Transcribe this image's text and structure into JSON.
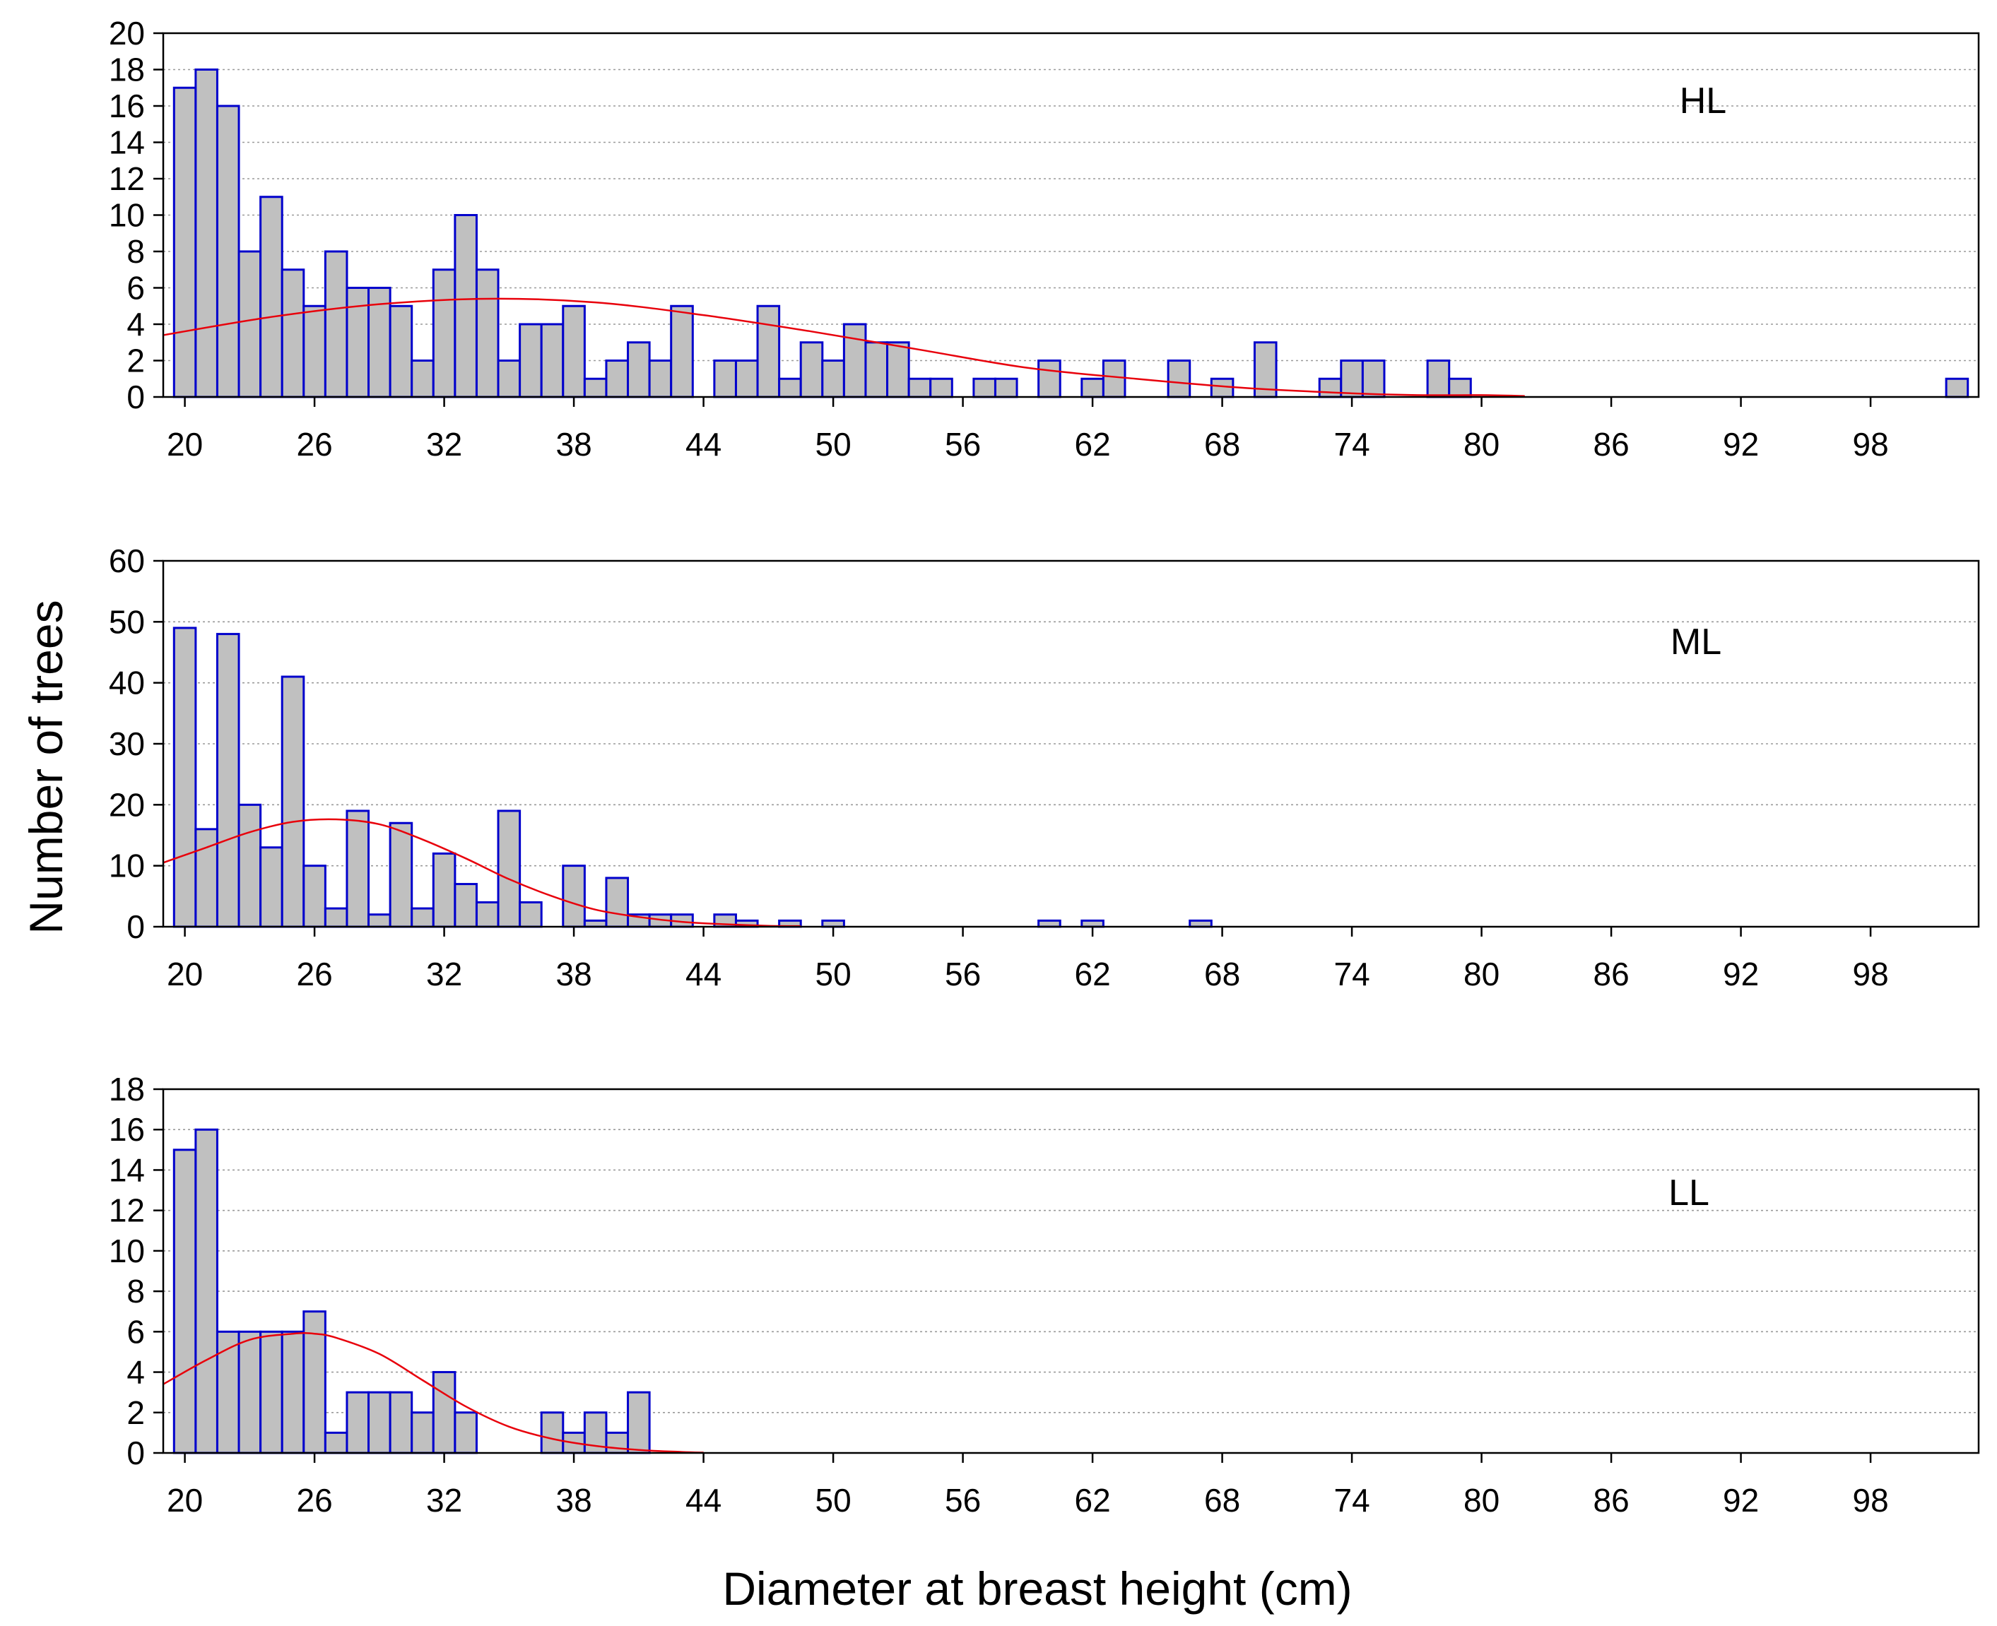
{
  "chart_data": [
    {
      "type": "bar",
      "panel_label": "HL",
      "xlim": [
        19,
        103
      ],
      "ylim": [
        0,
        20
      ],
      "x_ticks": [
        20,
        26,
        32,
        38,
        44,
        50,
        56,
        62,
        68,
        74,
        80,
        86,
        92,
        98
      ],
      "y_ticks": [
        0,
        2,
        4,
        6,
        8,
        10,
        12,
        14,
        16,
        18,
        20
      ],
      "grid": "horizontal dotted",
      "bin_width": 1,
      "x": [
        20,
        21,
        22,
        23,
        24,
        25,
        26,
        27,
        28,
        29,
        30,
        31,
        32,
        33,
        34,
        35,
        36,
        37,
        38,
        39,
        40,
        41,
        42,
        43,
        45,
        46,
        47,
        48,
        49,
        50,
        51,
        52,
        53,
        54,
        55,
        57,
        58,
        60,
        62,
        63,
        66,
        68,
        70,
        73,
        74,
        75,
        78,
        79,
        102
      ],
      "values": [
        17,
        18,
        16,
        8,
        11,
        7,
        5,
        8,
        6,
        6,
        5,
        2,
        7,
        10,
        7,
        2,
        4,
        4,
        5,
        1,
        2,
        3,
        2,
        5,
        2,
        2,
        5,
        1,
        3,
        2,
        4,
        3,
        3,
        1,
        1,
        1,
        1,
        2,
        1,
        2,
        2,
        1,
        3,
        1,
        2,
        2,
        2,
        1,
        1
      ],
      "fit_curve": {
        "type": "normal",
        "x": [
          19,
          24,
          29,
          34,
          39,
          44,
          49,
          54,
          59,
          64,
          69,
          74,
          77,
          80,
          82
        ],
        "y": [
          3.4,
          4.4,
          5.1,
          5.4,
          5.2,
          4.5,
          3.6,
          2.6,
          1.6,
          1.0,
          0.5,
          0.2,
          0.1,
          0.1,
          0.05
        ]
      },
      "colors": {
        "bar_fill": "#c0c0c0",
        "bar_stroke": "#0000cc",
        "fit_line": "#e8000b"
      }
    },
    {
      "type": "bar",
      "panel_label": "ML",
      "xlim": [
        19,
        103
      ],
      "ylim": [
        0,
        60
      ],
      "x_ticks": [
        20,
        26,
        32,
        38,
        44,
        50,
        56,
        62,
        68,
        74,
        80,
        86,
        92,
        98
      ],
      "y_ticks": [
        0,
        10,
        20,
        30,
        40,
        50,
        60
      ],
      "grid": "horizontal dotted",
      "bin_width": 1,
      "x": [
        20,
        21,
        22,
        23,
        24,
        25,
        26,
        27,
        28,
        29,
        30,
        31,
        32,
        33,
        34,
        35,
        36,
        38,
        39,
        40,
        41,
        42,
        43,
        45,
        46,
        48,
        50,
        60,
        62,
        67
      ],
      "values": [
        49,
        16,
        48,
        20,
        13,
        41,
        10,
        3,
        19,
        2,
        17,
        3,
        12,
        7,
        4,
        19,
        4,
        10,
        1,
        8,
        2,
        2,
        2,
        2,
        1,
        1,
        1,
        1,
        1,
        1
      ],
      "fit_curve": {
        "type": "normal",
        "x": [
          19,
          21,
          23,
          25,
          27,
          29,
          31,
          33,
          35,
          37,
          39,
          41,
          43,
          45,
          47,
          48.5
        ],
        "y": [
          10.5,
          13,
          15.5,
          17.2,
          17.6,
          16.8,
          14.3,
          11.2,
          7.8,
          5,
          2.8,
          1.6,
          0.8,
          0.4,
          0.15,
          0.1
        ]
      },
      "colors": {
        "bar_fill": "#c0c0c0",
        "bar_stroke": "#0000cc",
        "fit_line": "#e8000b"
      }
    },
    {
      "type": "bar",
      "panel_label": "LL",
      "xlim": [
        19,
        103
      ],
      "ylim": [
        0,
        18
      ],
      "x_ticks": [
        20,
        26,
        32,
        38,
        44,
        50,
        56,
        62,
        68,
        74,
        80,
        86,
        92,
        98
      ],
      "y_ticks": [
        0,
        2,
        4,
        6,
        8,
        10,
        12,
        14,
        16,
        18
      ],
      "grid": "horizontal dotted",
      "bin_width": 1,
      "x": [
        20,
        21,
        22,
        23,
        24,
        25,
        26,
        27,
        28,
        29,
        30,
        31,
        32,
        33,
        37,
        38,
        39,
        40,
        41
      ],
      "values": [
        15,
        16,
        6,
        6,
        6,
        6,
        7,
        1,
        3,
        3,
        3,
        2,
        4,
        2,
        2,
        1,
        2,
        1,
        3
      ],
      "fit_curve": {
        "type": "normal",
        "x": [
          19,
          21,
          23,
          25,
          26,
          27,
          29,
          31,
          33,
          35,
          37,
          39,
          41,
          43,
          44
        ],
        "y": [
          3.4,
          4.6,
          5.6,
          5.9,
          5.9,
          5.7,
          4.9,
          3.6,
          2.3,
          1.3,
          0.7,
          0.35,
          0.15,
          0.05,
          0.02
        ]
      },
      "colors": {
        "bar_fill": "#c0c0c0",
        "bar_stroke": "#0000cc",
        "fit_line": "#e8000b"
      }
    }
  ],
  "xlabel": "Diameter at breast height (cm)",
  "ylabel": "Number of trees"
}
